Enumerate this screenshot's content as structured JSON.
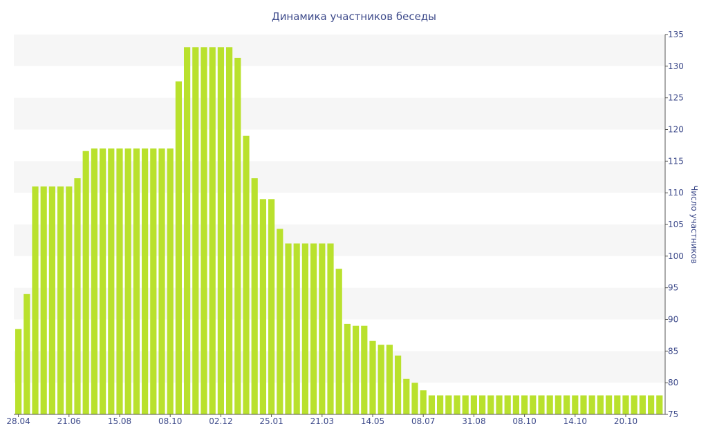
{
  "chart_data": {
    "type": "bar",
    "title": "Динамика участников беседы",
    "ylabel": "Число участников",
    "xlabel": "",
    "ylim": [
      75,
      135
    ],
    "yticks": [
      75,
      80,
      85,
      90,
      95,
      100,
      105,
      110,
      115,
      120,
      125,
      130,
      135
    ],
    "y_axis_side": "right",
    "grid": "alternating horizontal bands",
    "bar_color": "#b9e12d",
    "band_color": "#f6f6f6",
    "text_color": "#3d4a8a",
    "xtick_labels": [
      {
        "label": "28.04",
        "index": 0
      },
      {
        "label": "21.06",
        "index": 6
      },
      {
        "label": "15.08",
        "index": 12
      },
      {
        "label": "08.10",
        "index": 18
      },
      {
        "label": "02.12",
        "index": 24
      },
      {
        "label": "25.01",
        "index": 30
      },
      {
        "label": "21.03",
        "index": 36
      },
      {
        "label": "14.05",
        "index": 42
      },
      {
        "label": "08.07",
        "index": 48
      },
      {
        "label": "31.08",
        "index": 54
      },
      {
        "label": "08.10",
        "index": 60
      },
      {
        "label": "14.10",
        "index": 66
      },
      {
        "label": "20.10",
        "index": 72
      }
    ],
    "values": [
      88.5,
      94,
      111,
      111,
      111,
      111,
      111,
      112.3,
      116.6,
      117,
      117,
      117,
      117,
      117,
      117,
      117,
      117,
      117,
      117,
      127.6,
      133,
      133,
      133,
      133,
      133,
      133,
      131.3,
      119,
      112.3,
      109,
      109,
      104.3,
      102,
      102,
      102,
      102,
      102,
      102,
      98,
      89.3,
      89,
      89,
      86.6,
      86,
      86,
      84.3,
      80.6,
      80,
      78.8,
      78,
      78,
      78,
      78,
      78,
      78,
      78,
      78,
      78,
      78,
      78,
      78,
      78,
      78,
      78,
      78,
      78,
      78,
      78,
      78,
      78,
      78,
      78,
      78,
      78,
      78,
      78,
      78
    ]
  }
}
